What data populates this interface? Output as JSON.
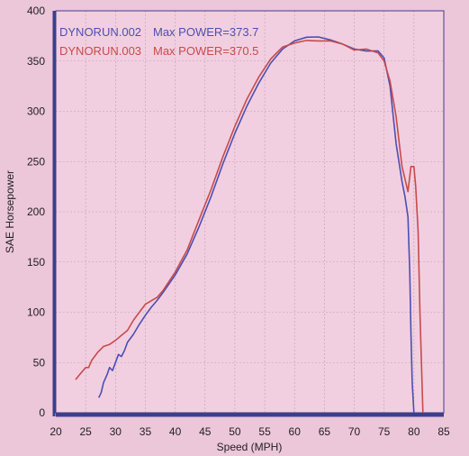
{
  "chart_data": {
    "type": "line",
    "xlabel": "Speed (MPH)",
    "ylabel": "SAE Horsepower",
    "xlim": [
      20,
      85
    ],
    "ylim": [
      0,
      400
    ],
    "xticks": [
      20,
      25,
      30,
      35,
      40,
      45,
      50,
      55,
      60,
      65,
      70,
      75,
      80,
      85
    ],
    "yticks": [
      0,
      50,
      100,
      150,
      200,
      250,
      300,
      350,
      400
    ],
    "grid": true,
    "legend_position": "top-left",
    "colors": {
      "background": "#ecc6d9",
      "plot_area": "#f2cfe0",
      "grid": "#b9a0b0",
      "axis": "#3c3f8a"
    },
    "series": [
      {
        "name": "DYNORUN.002",
        "label": "DYNORUN.002",
        "max_label": "Max POWER=373.7",
        "color": "#4a4fb4",
        "x": [
          27.2,
          27.6,
          28.0,
          28.6,
          29.0,
          29.5,
          30.0,
          30.5,
          31.0,
          31.5,
          32.0,
          33.0,
          34.0,
          35.0,
          36.0,
          37.0,
          38.0,
          40.0,
          42.0,
          44.0,
          46.0,
          48.0,
          50.0,
          52.0,
          54.0,
          56.0,
          58.0,
          60.0,
          62.0,
          64.0,
          66.0,
          68.0,
          70.0,
          72.0,
          74.0,
          75.0,
          76.0,
          77.0,
          78.0,
          78.5,
          79.0,
          79.3,
          79.5,
          79.7,
          80.0
        ],
        "y": [
          15,
          20,
          30,
          38,
          45,
          42,
          50,
          58,
          56,
          62,
          70,
          78,
          88,
          97,
          105,
          112,
          120,
          137,
          158,
          185,
          215,
          248,
          278,
          305,
          328,
          348,
          362,
          370,
          373.7,
          374,
          371,
          367,
          362,
          360,
          360,
          353,
          325,
          268,
          230,
          215,
          195,
          140,
          80,
          30,
          0
        ]
      },
      {
        "name": "DYNORUN.003",
        "label": "DYNORUN.003",
        "max_label": "Max POWER=370.5",
        "color": "#c84a4a",
        "x": [
          23.3,
          24.0,
          25.0,
          25.5,
          26.0,
          27.0,
          28.0,
          29.0,
          30.0,
          31.0,
          32.0,
          33.0,
          34.0,
          35.0,
          37.0,
          38.0,
          40.0,
          42.0,
          44.0,
          46.0,
          48.0,
          50.0,
          52.0,
          54.0,
          56.0,
          58.0,
          60.0,
          62.0,
          64.0,
          66.0,
          68.0,
          70.0,
          72.0,
          74.0,
          75.0,
          76.0,
          77.0,
          78.0,
          79.0,
          79.5,
          80.0,
          80.3,
          80.7,
          81.0,
          81.3,
          81.5
        ],
        "y": [
          33,
          38,
          45,
          45,
          52,
          60,
          66,
          68,
          72,
          77,
          82,
          92,
          100,
          108,
          115,
          122,
          140,
          162,
          192,
          222,
          255,
          285,
          312,
          334,
          352,
          364,
          368,
          370.5,
          370,
          370,
          367,
          361,
          362,
          358,
          350,
          330,
          295,
          245,
          220,
          245,
          245,
          225,
          180,
          100,
          40,
          0
        ]
      }
    ]
  }
}
